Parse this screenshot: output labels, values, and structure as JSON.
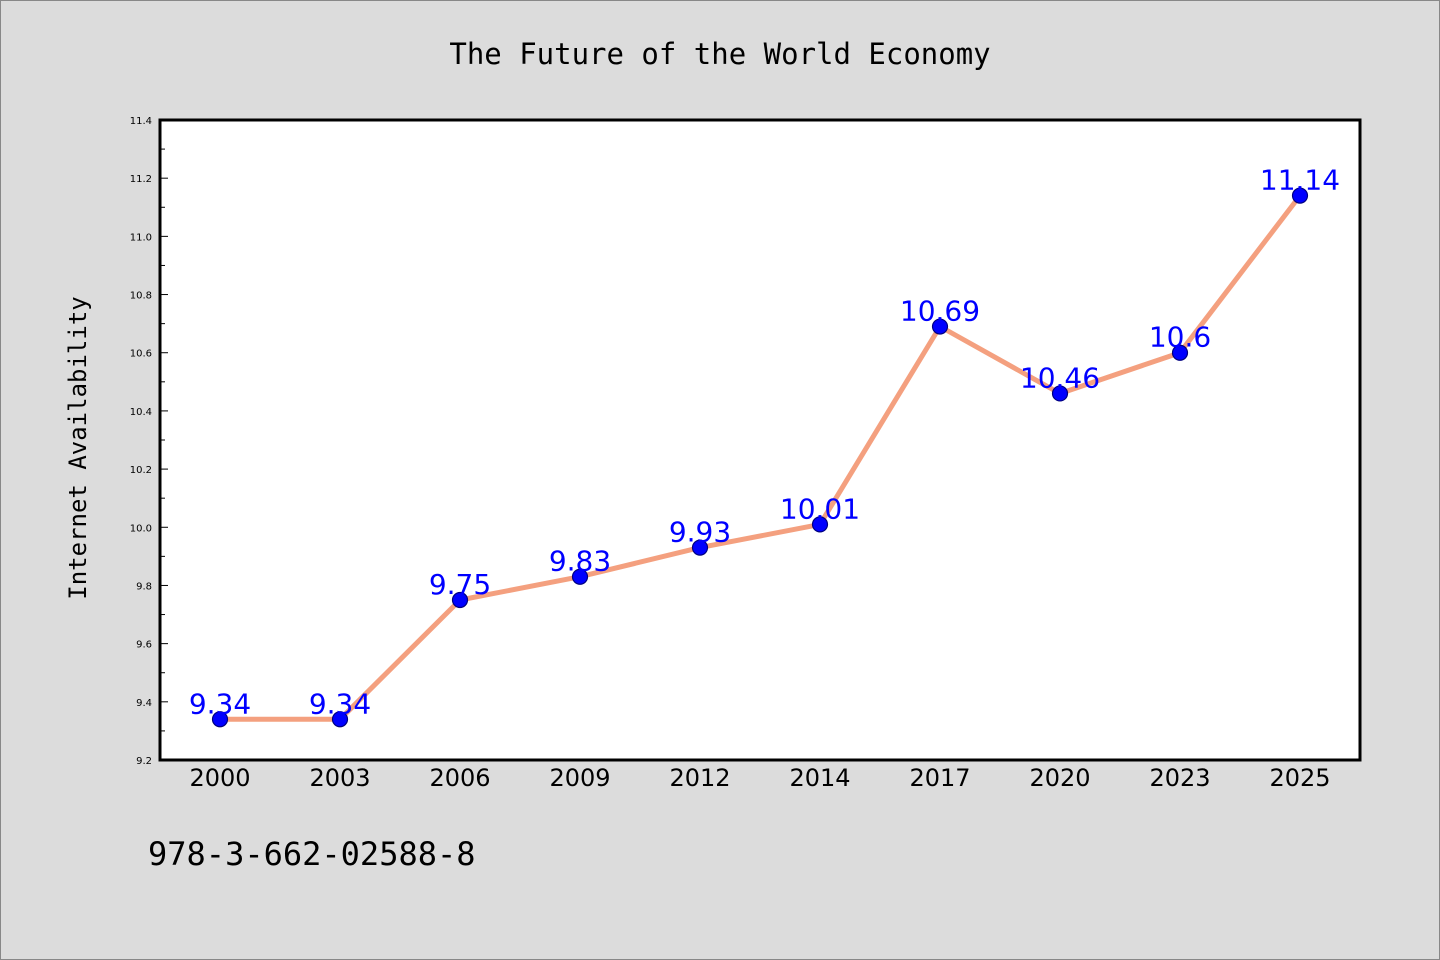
{
  "colors": {
    "background": "#dcdcdc",
    "plot_background": "#ffffff",
    "line": "#f4a07f",
    "marker": "#0000ff",
    "marker_edge": "#000080",
    "data_label": "#0000ff",
    "text": "#000000"
  },
  "isbn_text": "978-3-662-02588-8",
  "chart_data": {
    "type": "line",
    "title": "The Future of the World Economy",
    "xlabel": "",
    "ylabel": "Internet Availability",
    "categories": [
      "2000",
      "2003",
      "2006",
      "2009",
      "2012",
      "2014",
      "2017",
      "2020",
      "2023",
      "2025"
    ],
    "series": [
      {
        "values": [
          9.34,
          9.34,
          9.75,
          9.83,
          9.93,
          10.01,
          10.69,
          10.46,
          10.6,
          11.14
        ],
        "data_labels": [
          "9.34",
          "9.34",
          "9.75",
          "9.83",
          "9.93",
          "10.01",
          "10.69",
          "10.46",
          "10.6",
          "11.14"
        ]
      }
    ],
    "ylim": [
      9.2,
      11.4
    ],
    "yticks": [
      "9.2",
      "9.4",
      "9.6",
      "9.8",
      "10.0",
      "10.2",
      "10.4",
      "10.6",
      "10.8",
      "11.0",
      "11.2",
      "11.4"
    ],
    "grid": false,
    "legend": "none"
  }
}
